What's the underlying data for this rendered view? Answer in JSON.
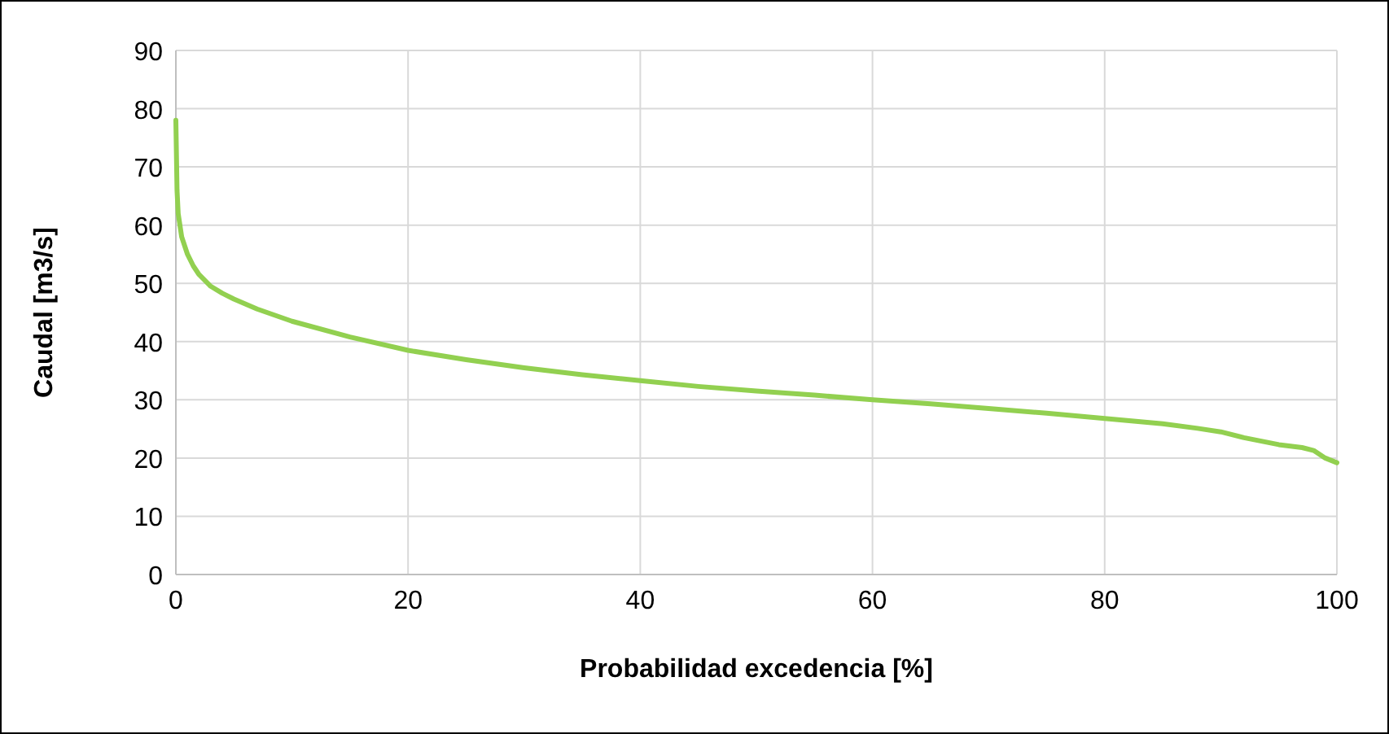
{
  "chart_data": {
    "type": "line",
    "xlabel": "Probabilidad excedencia [%]",
    "ylabel": "Caudal [m3/s]",
    "x": [
      0,
      0.1,
      0.2,
      0.5,
      1,
      1.5,
      2,
      3,
      4,
      5,
      7,
      10,
      15,
      20,
      25,
      30,
      35,
      40,
      45,
      50,
      55,
      60,
      65,
      70,
      75,
      80,
      85,
      88,
      90,
      92,
      95,
      97,
      98,
      99,
      100
    ],
    "series": [
      {
        "color": "#92d050",
        "values": [
          78,
          66,
          62,
          58,
          55,
          53,
          51.5,
          49.5,
          48.3,
          47.3,
          45.6,
          43.5,
          40.8,
          38.5,
          36.9,
          35.5,
          34.3,
          33.3,
          32.3,
          31.5,
          30.8,
          30,
          29.3,
          28.5,
          27.7,
          26.8,
          25.9,
          25.1,
          24.5,
          23.5,
          22.3,
          21.8,
          21.3,
          20,
          19.2
        ]
      }
    ],
    "xlim": [
      0,
      100
    ],
    "xticks": [
      0,
      20,
      40,
      60,
      80,
      100
    ],
    "ylim": [
      0,
      90
    ],
    "yticks": [
      0,
      10,
      20,
      30,
      40,
      50,
      60,
      70,
      80,
      90
    ],
    "grid": true,
    "marker": "none",
    "line_style": "solid"
  }
}
